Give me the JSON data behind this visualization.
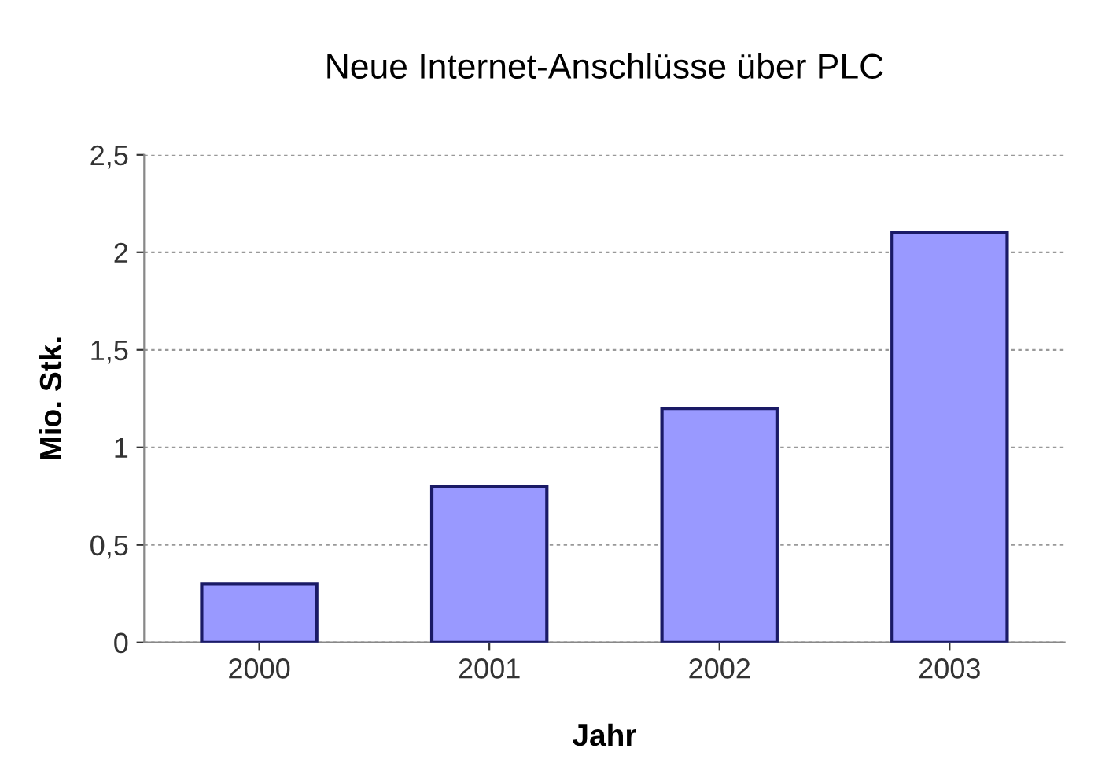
{
  "chart_data": {
    "type": "bar",
    "title": "Neue Internet-Anschlüsse über PLC",
    "xlabel": "Jahr",
    "ylabel": "Mio. Stk.",
    "categories": [
      "2000",
      "2001",
      "2002",
      "2003"
    ],
    "values": [
      0.3,
      0.8,
      1.2,
      2.1
    ],
    "color": "#9999ff",
    "ylim": [
      0,
      2.5
    ],
    "yticks": [
      0,
      {
        "value": 0.5,
        "label": "0,5"
      },
      1,
      {
        "value": 1.5,
        "label": "1,5"
      },
      2,
      {
        "value": 2.5,
        "label": "2,5"
      }
    ],
    "grid": "y",
    "legend": false
  }
}
